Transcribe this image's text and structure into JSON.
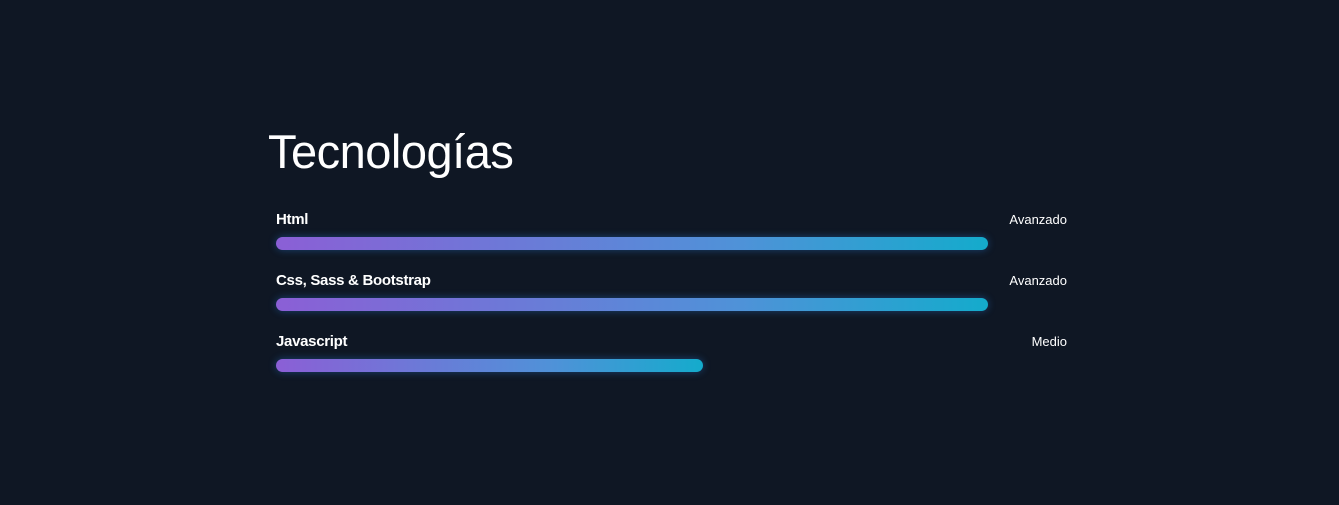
{
  "section": {
    "title": "Tecnologías"
  },
  "skills": [
    {
      "name": "Html",
      "level": "Avanzado",
      "progress": 0.9
    },
    {
      "name": "Css, Sass & Bootstrap",
      "level": "Avanzado",
      "progress": 0.9
    },
    {
      "name": "Javascript",
      "level": "Medio",
      "progress": 0.54
    }
  ],
  "colors": {
    "background": "#0f1724",
    "gradient_start": "#8b5fd6",
    "gradient_end": "#14abcc",
    "text": "#ffffff"
  }
}
